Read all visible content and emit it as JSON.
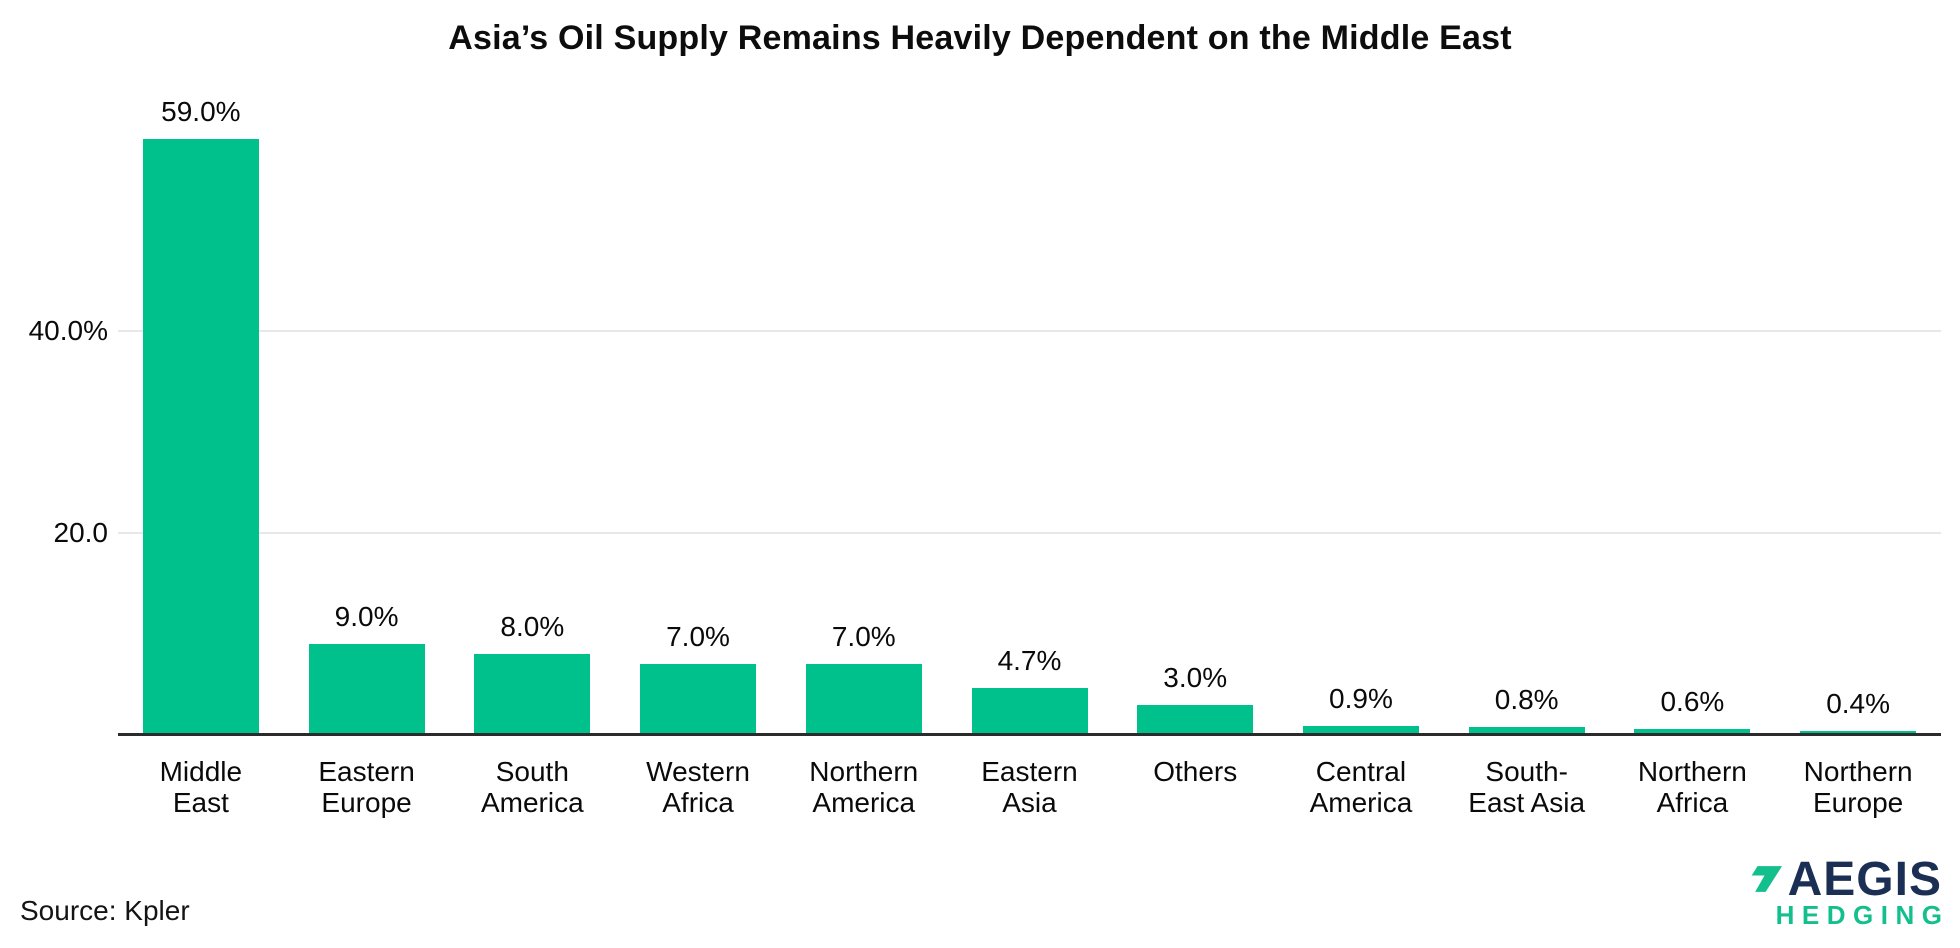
{
  "chart_data": {
    "type": "bar",
    "title": "Asia’s Oil Supply Remains Heavily Dependent on the Middle East",
    "categories": [
      "Middle East",
      "Eastern Europe",
      "South America",
      "Western Africa",
      "Northern America",
      "Eastern Asia",
      "Others",
      "Central America",
      "South-East Asia",
      "Northern Africa",
      "Northern Europe"
    ],
    "category_lines": [
      [
        "Middle",
        "East"
      ],
      [
        "Eastern",
        "Europe"
      ],
      [
        "South",
        "America"
      ],
      [
        "Western",
        "Africa"
      ],
      [
        "Northern",
        "America"
      ],
      [
        "Eastern",
        "Asia"
      ],
      [
        "Others"
      ],
      [
        "Central",
        "America"
      ],
      [
        "South-",
        "East Asia"
      ],
      [
        "Northern",
        "Africa"
      ],
      [
        "Northern",
        "Europe"
      ]
    ],
    "values": [
      59.0,
      9.0,
      8.0,
      7.0,
      7.0,
      4.7,
      3.0,
      0.9,
      0.8,
      0.6,
      0.4
    ],
    "value_labels": [
      "59.0%",
      "9.0%",
      "8.0%",
      "7.0%",
      "7.0%",
      "4.7%",
      "3.0%",
      "0.9%",
      "0.8%",
      "0.6%",
      "0.4%"
    ],
    "y_ticks": [
      {
        "label": "40.0%",
        "value": 40.0
      },
      {
        "label": "20.0",
        "value": 20.0
      }
    ],
    "ylim": [
      0,
      62
    ],
    "xlabel": "",
    "ylabel": "",
    "legend": "none",
    "grid": "horizontal-only",
    "bar_color": "#00C18C",
    "gridline_color": "#E8E8E8",
    "axis_line_color": "#2B2B2B"
  },
  "footer": {
    "source_label": "Source: Kpler"
  },
  "logo": {
    "name": "AEGIS",
    "subtitle": "HEDGING",
    "navy": "#1B2F54",
    "green": "#14BF8E"
  }
}
